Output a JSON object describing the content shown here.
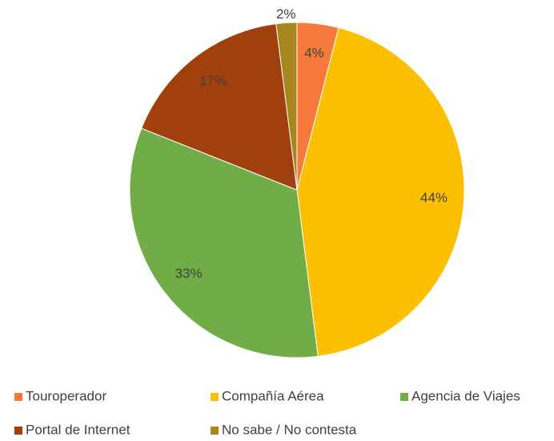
{
  "chart_data": {
    "type": "pie",
    "categories": [
      "Touroperador",
      "Compañía Aérea",
      "Agencia de Viajes",
      "Portal de Internet",
      "No sabe / No contesta"
    ],
    "values": [
      4,
      44,
      33,
      17,
      2
    ],
    "value_labels": [
      "4%",
      "44%",
      "33%",
      "17%",
      "2%"
    ],
    "colors": [
      "#f4793b",
      "#fcc000",
      "#71ad47",
      "#a0410d",
      "#a8861e"
    ],
    "legend": "bottom"
  }
}
